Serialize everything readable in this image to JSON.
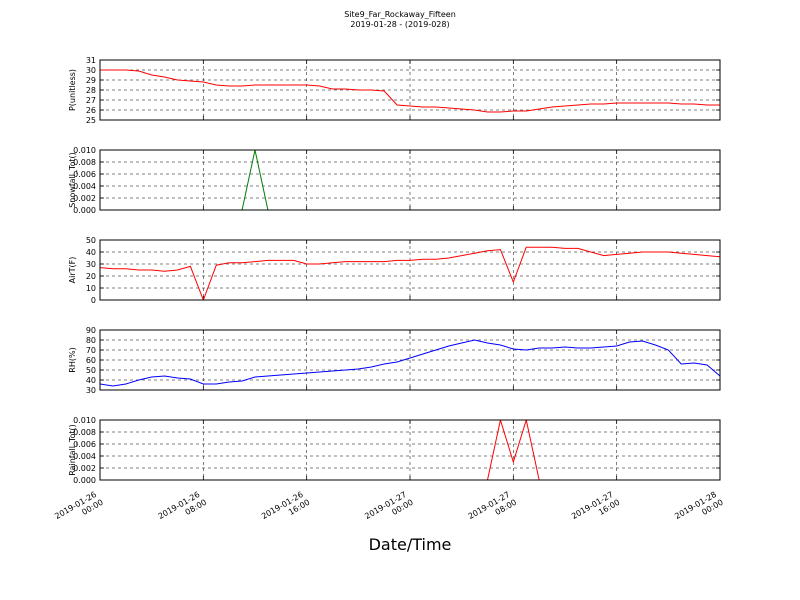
{
  "title": "Site9_Far_Rockaway_Fifteen",
  "subtitle": "2019-01-28 - (2019-028)",
  "chart_data": [
    {
      "type": "line",
      "ylabel": "P(unitless)",
      "ylim": [
        25,
        31
      ],
      "yticks": [
        25,
        26,
        27,
        28,
        29,
        30,
        31
      ],
      "grid": true,
      "xlim": [
        "2019-01-26 00:00",
        "2019-01-28 00:00"
      ],
      "xticks": [
        "2019-01-26 00:00",
        "2019-01-26 08:00",
        "2019-01-26 16:00",
        "2019-01-27 00:00",
        "2019-01-27 08:00",
        "2019-01-27 16:00",
        "2019-01-28 00:00"
      ],
      "x": [
        "2019-01-26 00:00",
        "2019-01-26 01:00",
        "2019-01-26 02:00",
        "2019-01-26 03:00",
        "2019-01-26 04:00",
        "2019-01-26 05:00",
        "2019-01-26 06:00",
        "2019-01-26 07:00",
        "2019-01-26 08:00",
        "2019-01-26 09:00",
        "2019-01-26 10:00",
        "2019-01-26 11:00",
        "2019-01-26 12:00",
        "2019-01-26 13:00",
        "2019-01-26 14:00",
        "2019-01-26 15:00",
        "2019-01-26 16:00",
        "2019-01-26 17:00",
        "2019-01-26 18:00",
        "2019-01-26 19:00",
        "2019-01-26 20:00",
        "2019-01-26 21:00",
        "2019-01-26 22:00",
        "2019-01-26 23:00",
        "2019-01-27 00:00",
        "2019-01-27 01:00",
        "2019-01-27 02:00",
        "2019-01-27 03:00",
        "2019-01-27 04:00",
        "2019-01-27 05:00",
        "2019-01-27 06:00",
        "2019-01-27 07:00",
        "2019-01-27 08:00",
        "2019-01-27 09:00",
        "2019-01-27 10:00",
        "2019-01-27 11:00",
        "2019-01-27 12:00",
        "2019-01-27 13:00",
        "2019-01-27 14:00",
        "2019-01-27 15:00",
        "2019-01-27 16:00",
        "2019-01-27 17:00",
        "2019-01-27 18:00",
        "2019-01-27 19:00",
        "2019-01-27 20:00",
        "2019-01-27 21:00",
        "2019-01-27 22:00",
        "2019-01-27 23:00",
        "2019-01-28 00:00"
      ],
      "series": [
        {
          "color": "#ff0000",
          "values": [
            30.0,
            30.0,
            30.0,
            29.9,
            29.5,
            29.3,
            29.0,
            28.9,
            28.8,
            28.5,
            28.4,
            28.4,
            28.5,
            28.5,
            28.5,
            28.5,
            28.5,
            28.4,
            28.1,
            28.1,
            28.0,
            28.0,
            27.9,
            26.5,
            26.4,
            26.3,
            26.3,
            26.2,
            26.1,
            26.0,
            25.8,
            25.8,
            25.9,
            25.9,
            26.1,
            26.3,
            26.4,
            26.5,
            26.6,
            26.6,
            26.7,
            26.7,
            26.7,
            26.7,
            26.7,
            26.6,
            26.6,
            26.5,
            26.5
          ]
        }
      ]
    },
    {
      "type": "line",
      "ylabel": "Snowfall_Tot()",
      "ylim": [
        0,
        0.01
      ],
      "yticks": [
        {
          "value": 0,
          "label": "0.000"
        },
        {
          "value": 0.002,
          "label": "0.002"
        },
        {
          "value": 0.004,
          "label": "0.004"
        },
        {
          "value": 0.006,
          "label": "0.006"
        },
        {
          "value": 0.008,
          "label": "0.008"
        },
        {
          "value": 0.01,
          "label": "0.010"
        }
      ],
      "grid": true,
      "xlim": [
        "2019-01-26 00:00",
        "2019-01-28 00:00"
      ],
      "xticks": [
        "2019-01-26 00:00",
        "2019-01-26 08:00",
        "2019-01-26 16:00",
        "2019-01-27 00:00",
        "2019-01-27 08:00",
        "2019-01-27 16:00",
        "2019-01-28 00:00"
      ],
      "x": [
        "2019-01-26 00:00",
        "2019-01-26 01:00",
        "2019-01-26 02:00",
        "2019-01-26 03:00",
        "2019-01-26 04:00",
        "2019-01-26 05:00",
        "2019-01-26 06:00",
        "2019-01-26 07:00",
        "2019-01-26 08:00",
        "2019-01-26 09:00",
        "2019-01-26 10:00",
        "2019-01-26 11:00",
        "2019-01-26 12:00",
        "2019-01-26 13:00",
        "2019-01-26 14:00",
        "2019-01-26 15:00",
        "2019-01-26 16:00",
        "2019-01-26 17:00",
        "2019-01-26 18:00",
        "2019-01-26 19:00",
        "2019-01-26 20:00",
        "2019-01-26 21:00",
        "2019-01-26 22:00",
        "2019-01-26 23:00",
        "2019-01-27 00:00",
        "2019-01-27 01:00",
        "2019-01-27 02:00",
        "2019-01-27 03:00",
        "2019-01-27 04:00",
        "2019-01-27 05:00",
        "2019-01-27 06:00",
        "2019-01-27 07:00",
        "2019-01-27 08:00",
        "2019-01-27 09:00",
        "2019-01-27 10:00",
        "2019-01-27 11:00",
        "2019-01-27 12:00",
        "2019-01-27 13:00",
        "2019-01-27 14:00",
        "2019-01-27 15:00",
        "2019-01-27 16:00",
        "2019-01-27 17:00",
        "2019-01-27 18:00",
        "2019-01-27 19:00",
        "2019-01-27 20:00",
        "2019-01-27 21:00",
        "2019-01-27 22:00",
        "2019-01-27 23:00",
        "2019-01-28 00:00"
      ],
      "series": [
        {
          "color": "#007f00",
          "values": [
            0,
            0,
            0,
            0,
            0,
            0,
            0,
            0,
            0,
            0,
            0,
            0,
            0.01,
            0,
            0,
            0,
            0,
            0,
            0,
            0,
            0,
            0,
            0,
            0,
            0,
            0,
            0,
            0,
            0,
            0,
            0,
            0,
            0,
            0,
            0,
            0,
            0,
            0,
            0,
            0,
            0,
            0,
            0,
            0,
            0,
            0,
            0,
            0,
            0
          ]
        }
      ]
    },
    {
      "type": "line",
      "ylabel": "AirT(F)",
      "ylim": [
        0,
        50
      ],
      "yticks": [
        0,
        10,
        20,
        30,
        40,
        50
      ],
      "grid": true,
      "xlim": [
        "2019-01-26 00:00",
        "2019-01-28 00:00"
      ],
      "xticks": [
        "2019-01-26 00:00",
        "2019-01-26 08:00",
        "2019-01-26 16:00",
        "2019-01-27 00:00",
        "2019-01-27 08:00",
        "2019-01-27 16:00",
        "2019-01-28 00:00"
      ],
      "x": [
        "2019-01-26 00:00",
        "2019-01-26 01:00",
        "2019-01-26 02:00",
        "2019-01-26 03:00",
        "2019-01-26 04:00",
        "2019-01-26 05:00",
        "2019-01-26 06:00",
        "2019-01-26 07:00",
        "2019-01-26 08:00",
        "2019-01-26 09:00",
        "2019-01-26 10:00",
        "2019-01-26 11:00",
        "2019-01-26 12:00",
        "2019-01-26 13:00",
        "2019-01-26 14:00",
        "2019-01-26 15:00",
        "2019-01-26 16:00",
        "2019-01-26 17:00",
        "2019-01-26 18:00",
        "2019-01-26 19:00",
        "2019-01-26 20:00",
        "2019-01-26 21:00",
        "2019-01-26 22:00",
        "2019-01-26 23:00",
        "2019-01-27 00:00",
        "2019-01-27 01:00",
        "2019-01-27 02:00",
        "2019-01-27 03:00",
        "2019-01-27 04:00",
        "2019-01-27 05:00",
        "2019-01-27 06:00",
        "2019-01-27 07:00",
        "2019-01-27 08:00",
        "2019-01-27 09:00",
        "2019-01-27 10:00",
        "2019-01-27 11:00",
        "2019-01-27 12:00",
        "2019-01-27 13:00",
        "2019-01-27 14:00",
        "2019-01-27 15:00",
        "2019-01-27 16:00",
        "2019-01-27 17:00",
        "2019-01-27 18:00",
        "2019-01-27 19:00",
        "2019-01-27 20:00",
        "2019-01-27 21:00",
        "2019-01-27 22:00",
        "2019-01-27 23:00",
        "2019-01-28 00:00"
      ],
      "series": [
        {
          "color": "#ff0000",
          "values": [
            27,
            26,
            26,
            25,
            25,
            24,
            25,
            28,
            0,
            29,
            31,
            31,
            32,
            33,
            33,
            33,
            30,
            30,
            31,
            32,
            32,
            32,
            32,
            33,
            33,
            34,
            34,
            35,
            37,
            39,
            41,
            42,
            15,
            44,
            44,
            44,
            43,
            43,
            40,
            37,
            38,
            39,
            40,
            40,
            40,
            39,
            38,
            37,
            36
          ]
        }
      ]
    },
    {
      "type": "line",
      "ylabel": "RH(%)",
      "ylim": [
        30,
        90
      ],
      "yticks": [
        30,
        40,
        50,
        60,
        70,
        80,
        90
      ],
      "grid": true,
      "xlim": [
        "2019-01-26 00:00",
        "2019-01-28 00:00"
      ],
      "xticks": [
        "2019-01-26 00:00",
        "2019-01-26 08:00",
        "2019-01-26 16:00",
        "2019-01-27 00:00",
        "2019-01-27 08:00",
        "2019-01-27 16:00",
        "2019-01-28 00:00"
      ],
      "x": [
        "2019-01-26 00:00",
        "2019-01-26 01:00",
        "2019-01-26 02:00",
        "2019-01-26 03:00",
        "2019-01-26 04:00",
        "2019-01-26 05:00",
        "2019-01-26 06:00",
        "2019-01-26 07:00",
        "2019-01-26 08:00",
        "2019-01-26 09:00",
        "2019-01-26 10:00",
        "2019-01-26 11:00",
        "2019-01-26 12:00",
        "2019-01-26 13:00",
        "2019-01-26 14:00",
        "2019-01-26 15:00",
        "2019-01-26 16:00",
        "2019-01-26 17:00",
        "2019-01-26 18:00",
        "2019-01-26 19:00",
        "2019-01-26 20:00",
        "2019-01-26 21:00",
        "2019-01-26 22:00",
        "2019-01-26 23:00",
        "2019-01-27 00:00",
        "2019-01-27 01:00",
        "2019-01-27 02:00",
        "2019-01-27 03:00",
        "2019-01-27 04:00",
        "2019-01-27 05:00",
        "2019-01-27 06:00",
        "2019-01-27 07:00",
        "2019-01-27 08:00",
        "2019-01-27 09:00",
        "2019-01-27 10:00",
        "2019-01-27 11:00",
        "2019-01-27 12:00",
        "2019-01-27 13:00",
        "2019-01-27 14:00",
        "2019-01-27 15:00",
        "2019-01-27 16:00",
        "2019-01-27 17:00",
        "2019-01-27 18:00",
        "2019-01-27 19:00",
        "2019-01-27 20:00",
        "2019-01-27 21:00",
        "2019-01-27 22:00",
        "2019-01-27 23:00",
        "2019-01-28 00:00"
      ],
      "series": [
        {
          "color": "#0000ff",
          "values": [
            36,
            34,
            36,
            40,
            43,
            44,
            42,
            41,
            36,
            36,
            38,
            39,
            43,
            44,
            45,
            46,
            47,
            48,
            49,
            50,
            51,
            53,
            56,
            58,
            62,
            66,
            70,
            74,
            77,
            80,
            77,
            75,
            71,
            70,
            72,
            72,
            73,
            72,
            72,
            73,
            74,
            78,
            79,
            75,
            70,
            56,
            57,
            55,
            44
          ]
        }
      ]
    },
    {
      "type": "line",
      "ylabel": "Rainfall_Tot()",
      "xlabel": "Date/Time",
      "ylim": [
        0,
        0.01
      ],
      "yticks": [
        {
          "value": 0,
          "label": "0.000"
        },
        {
          "value": 0.002,
          "label": "0.002"
        },
        {
          "value": 0.004,
          "label": "0.004"
        },
        {
          "value": 0.006,
          "label": "0.006"
        },
        {
          "value": 0.008,
          "label": "0.008"
        },
        {
          "value": 0.01,
          "label": "0.010"
        }
      ],
      "grid": true,
      "xlim": [
        "2019-01-26 00:00",
        "2019-01-28 00:00"
      ],
      "xticks": [
        {
          "value": "2019-01-26 00:00",
          "label": [
            "2019-01-26",
            "00:00"
          ]
        },
        {
          "value": "2019-01-26 08:00",
          "label": [
            "2019-01-26",
            "08:00"
          ]
        },
        {
          "value": "2019-01-26 16:00",
          "label": [
            "2019-01-26",
            "16:00"
          ]
        },
        {
          "value": "2019-01-27 00:00",
          "label": [
            "2019-01-27",
            "00:00"
          ]
        },
        {
          "value": "2019-01-27 08:00",
          "label": [
            "2019-01-27",
            "08:00"
          ]
        },
        {
          "value": "2019-01-27 16:00",
          "label": [
            "2019-01-27",
            "16:00"
          ]
        },
        {
          "value": "2019-01-28 00:00",
          "label": [
            "2019-01-28",
            "00:00"
          ]
        }
      ],
      "x": [
        "2019-01-26 00:00",
        "2019-01-26 01:00",
        "2019-01-26 02:00",
        "2019-01-26 03:00",
        "2019-01-26 04:00",
        "2019-01-26 05:00",
        "2019-01-26 06:00",
        "2019-01-26 07:00",
        "2019-01-26 08:00",
        "2019-01-26 09:00",
        "2019-01-26 10:00",
        "2019-01-26 11:00",
        "2019-01-26 12:00",
        "2019-01-26 13:00",
        "2019-01-26 14:00",
        "2019-01-26 15:00",
        "2019-01-26 16:00",
        "2019-01-26 17:00",
        "2019-01-26 18:00",
        "2019-01-26 19:00",
        "2019-01-26 20:00",
        "2019-01-26 21:00",
        "2019-01-26 22:00",
        "2019-01-26 23:00",
        "2019-01-27 00:00",
        "2019-01-27 01:00",
        "2019-01-27 02:00",
        "2019-01-27 03:00",
        "2019-01-27 04:00",
        "2019-01-27 05:00",
        "2019-01-27 06:00",
        "2019-01-27 07:00",
        "2019-01-27 08:00",
        "2019-01-27 09:00",
        "2019-01-27 10:00",
        "2019-01-27 11:00",
        "2019-01-27 12:00",
        "2019-01-27 13:00",
        "2019-01-27 14:00",
        "2019-01-27 15:00",
        "2019-01-27 16:00",
        "2019-01-27 17:00",
        "2019-01-27 18:00",
        "2019-01-27 19:00",
        "2019-01-27 20:00",
        "2019-01-27 21:00",
        "2019-01-27 22:00",
        "2019-01-27 23:00",
        "2019-01-28 00:00"
      ],
      "series": [
        {
          "color": "#ff0000",
          "values": [
            0,
            0,
            0,
            0,
            0,
            0,
            0,
            0,
            0,
            0,
            0,
            0,
            0,
            0,
            0,
            0,
            0,
            0,
            0,
            0,
            0,
            0,
            0,
            0,
            0,
            0,
            0,
            0,
            0,
            0,
            0,
            0.01,
            0.003,
            0.01,
            0,
            0,
            0,
            0,
            0,
            0,
            0,
            0,
            0,
            0,
            0,
            0,
            0,
            0,
            0
          ]
        }
      ]
    }
  ]
}
